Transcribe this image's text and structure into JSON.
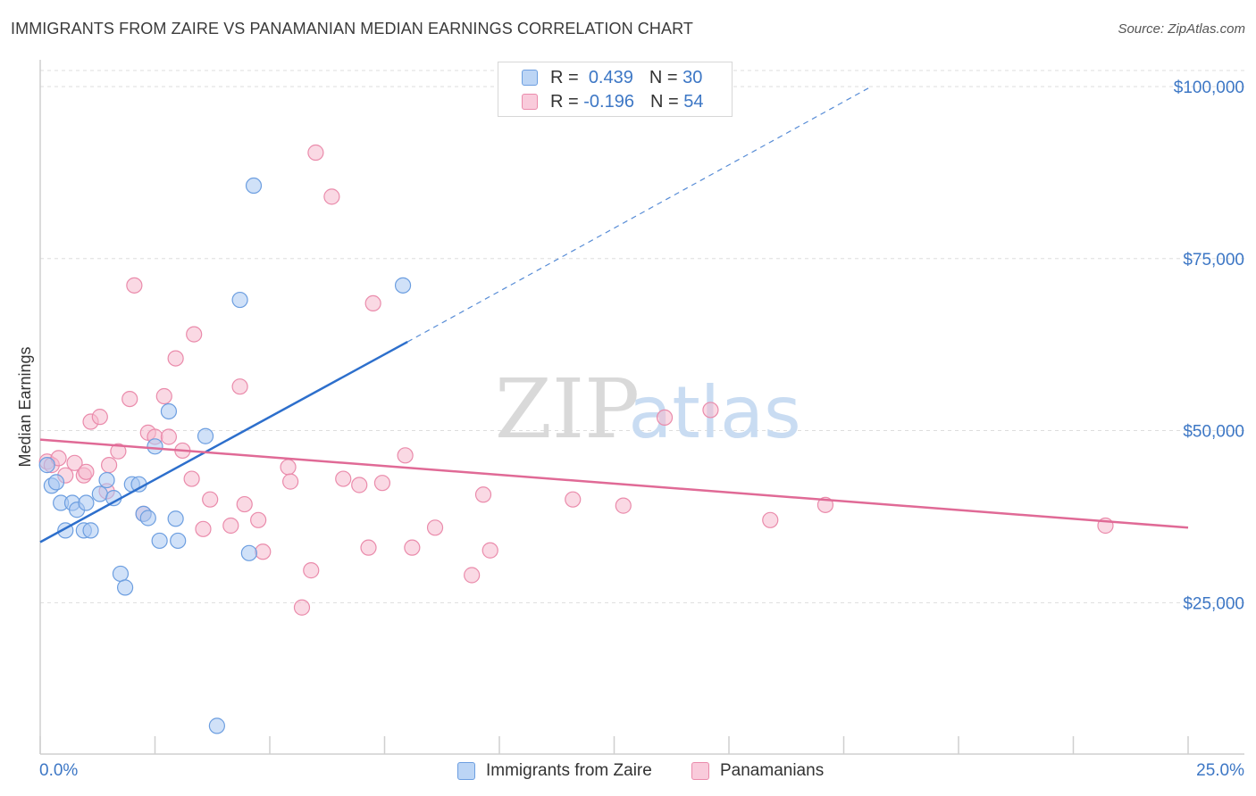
{
  "title": "IMMIGRANTS FROM ZAIRE VS PANAMANIAN MEDIAN EARNINGS CORRELATION CHART",
  "source": "Source: ZipAtlas.com",
  "watermark": {
    "zip": "ZIP",
    "atlas": "atlas"
  },
  "colors": {
    "blue_fill": "#a9c9f2",
    "blue_stroke": "#6c9ee0",
    "blue_line": "#2d6fcc",
    "pink_fill": "#f6b9cd",
    "pink_stroke": "#ea8bab",
    "pink_line": "#e06a96",
    "tick_text": "#3d77c5",
    "grid": "#dddddd"
  },
  "legend": {
    "rows": [
      {
        "r_label": "R =",
        "r_value": "0.439",
        "n_label": "N =",
        "n_value": "30"
      },
      {
        "r_label": "R =",
        "r_value": "-0.196",
        "n_label": "N =",
        "n_value": "54"
      }
    ]
  },
  "bottom_legend": [
    "Immigrants from Zaire",
    "Panamanians"
  ],
  "chart_data": {
    "type": "scatter",
    "title": "IMMIGRANTS FROM ZAIRE VS PANAMANIAN MEDIAN EARNINGS CORRELATION CHART",
    "xlabel": "",
    "ylabel": "Median Earnings",
    "xlim": [
      0,
      25
    ],
    "ylim": [
      3000,
      103500
    ],
    "x_tick_labels": [
      "0.0%",
      "25.0%"
    ],
    "y_ticks": [
      25000,
      50000,
      75000,
      100000
    ],
    "y_tick_labels": [
      "$25,000",
      "$50,000",
      "$75,000",
      "$100,000"
    ],
    "grid": true,
    "legend_position": "top-center",
    "series": [
      {
        "name": "Immigrants from Zaire",
        "r": 0.439,
        "n": 30,
        "points": [
          [
            0.15,
            45000
          ],
          [
            0.25,
            42000
          ],
          [
            0.35,
            42500
          ],
          [
            0.45,
            39500
          ],
          [
            0.55,
            35500
          ],
          [
            0.7,
            39500
          ],
          [
            0.8,
            38500
          ],
          [
            0.95,
            35500
          ],
          [
            1.0,
            39500
          ],
          [
            1.1,
            35500
          ],
          [
            1.3,
            40800
          ],
          [
            1.45,
            42800
          ],
          [
            1.6,
            40200
          ],
          [
            1.75,
            29200
          ],
          [
            1.85,
            27200
          ],
          [
            2.0,
            42200
          ],
          [
            2.15,
            42200
          ],
          [
            2.25,
            37900
          ],
          [
            2.35,
            37300
          ],
          [
            2.5,
            47700
          ],
          [
            2.6,
            34000
          ],
          [
            2.8,
            52800
          ],
          [
            2.95,
            37200
          ],
          [
            3.0,
            34000
          ],
          [
            3.6,
            49200
          ],
          [
            3.85,
            7100
          ],
          [
            4.35,
            69000
          ],
          [
            4.55,
            32200
          ],
          [
            4.65,
            85600
          ],
          [
            7.9,
            71100
          ]
        ],
        "trend": {
          "x": [
            0,
            8.0
          ],
          "y": [
            33800,
            62900
          ]
        },
        "trend_dashed": {
          "x": [
            8.0,
            18.1
          ],
          "y": [
            62900,
            100000
          ]
        }
      },
      {
        "name": "Panamanians",
        "r": -0.196,
        "n": 54,
        "points": [
          [
            0.15,
            45500
          ],
          [
            0.25,
            45000
          ],
          [
            0.4,
            46000
          ],
          [
            0.55,
            43500
          ],
          [
            0.75,
            45300
          ],
          [
            0.95,
            43500
          ],
          [
            1.0,
            44000
          ],
          [
            1.1,
            51300
          ],
          [
            1.3,
            52000
          ],
          [
            1.5,
            45000
          ],
          [
            1.7,
            47000
          ],
          [
            1.45,
            41200
          ],
          [
            1.95,
            54600
          ],
          [
            2.05,
            71100
          ],
          [
            2.25,
            37900
          ],
          [
            2.35,
            49700
          ],
          [
            2.5,
            49100
          ],
          [
            2.7,
            55000
          ],
          [
            2.8,
            49100
          ],
          [
            2.95,
            60500
          ],
          [
            3.1,
            47100
          ],
          [
            3.3,
            43000
          ],
          [
            3.35,
            64000
          ],
          [
            3.55,
            35700
          ],
          [
            3.7,
            40000
          ],
          [
            4.15,
            36200
          ],
          [
            4.35,
            56400
          ],
          [
            4.45,
            39300
          ],
          [
            4.75,
            37000
          ],
          [
            4.85,
            32400
          ],
          [
            5.4,
            44700
          ],
          [
            5.45,
            42600
          ],
          [
            5.7,
            24300
          ],
          [
            5.9,
            29700
          ],
          [
            6.0,
            90400
          ],
          [
            6.35,
            84000
          ],
          [
            6.6,
            43000
          ],
          [
            6.95,
            42100
          ],
          [
            7.15,
            33000
          ],
          [
            7.25,
            68500
          ],
          [
            7.45,
            42400
          ],
          [
            7.95,
            46400
          ],
          [
            8.1,
            33000
          ],
          [
            8.6,
            35900
          ],
          [
            9.4,
            29000
          ],
          [
            9.65,
            40700
          ],
          [
            9.8,
            32600
          ],
          [
            11.6,
            40000
          ],
          [
            12.7,
            39100
          ],
          [
            13.6,
            51900
          ],
          [
            14.6,
            53000
          ],
          [
            15.9,
            37000
          ],
          [
            17.1,
            39200
          ],
          [
            23.2,
            36200
          ]
        ],
        "trend": {
          "x": [
            0,
            25
          ],
          "y": [
            48700,
            35900
          ]
        }
      }
    ]
  }
}
